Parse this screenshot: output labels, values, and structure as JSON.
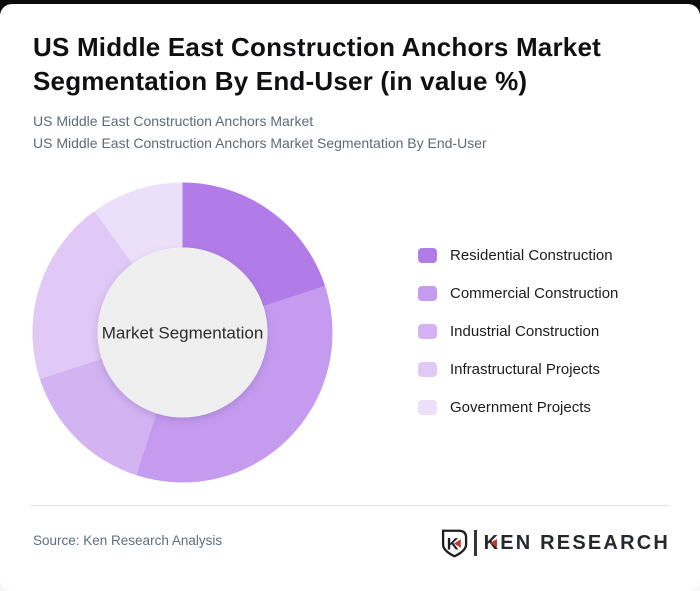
{
  "page": {
    "title": "US Middle East Construction Anchors Market Segmentation By End-User (in value %)",
    "subtitle_line1": "US Middle East Construction Anchors Market",
    "subtitle_line2": "US Middle East Construction Anchors Market Segmentation By End-User"
  },
  "chart_data": {
    "type": "pie",
    "subtype": "donut",
    "title": "US Middle East Construction Anchors Market Segmentation By End-User (in value %)",
    "center_label": "Market Segmentation",
    "labels": [
      "Residential Construction",
      "Commercial Construction",
      "Industrial Construction",
      "Infrastructural Projects",
      "Government Projects"
    ],
    "values": [
      20,
      35,
      15,
      20,
      10
    ],
    "unit": "value %",
    "colors": [
      "#b27ce8",
      "#c59bef",
      "#d3b3f2",
      "#e0c9f6",
      "#ecdffa"
    ],
    "start_angle_deg": 0,
    "direction": "clockwise",
    "legend_position": "right",
    "inner_hole_color": "#efeff0",
    "data_labels_shown": false
  },
  "footer": {
    "source": "Source: Ken Research Analysis",
    "logo_monogram": "K",
    "logo_text": "KEN RESEARCH",
    "logo_accent_color": "#c0392e"
  }
}
